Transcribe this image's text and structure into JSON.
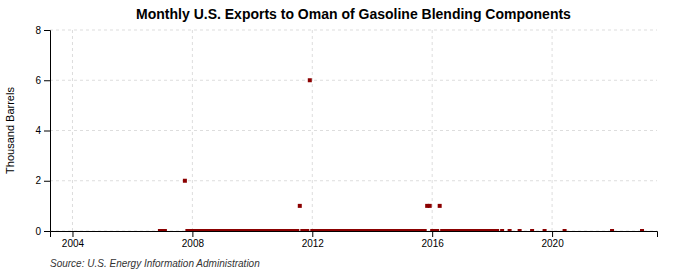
{
  "chart_data": {
    "type": "scatter",
    "title": "Monthly U.S. Exports to Oman of Gasoline Blending Components",
    "ylabel": "Thousand Barrels",
    "source": "Source: U.S. Energy Information Administration",
    "color": "#8b0000",
    "marker": "square",
    "grid": true,
    "xlim": [
      2003.25,
      2023.5
    ],
    "xticks": [
      2004,
      2008,
      2012,
      2016,
      2020
    ],
    "ylim": [
      0,
      8
    ],
    "yticks": [
      0,
      2,
      4,
      6,
      8
    ],
    "x": [
      2006.917,
      2007.0,
      2007.083,
      2007.75,
      2007.833,
      2007.917,
      2008.0,
      2008.083,
      2008.167,
      2008.25,
      2008.333,
      2008.417,
      2008.5,
      2008.583,
      2008.667,
      2008.75,
      2008.833,
      2008.917,
      2009.0,
      2009.083,
      2009.167,
      2009.25,
      2009.333,
      2009.417,
      2009.5,
      2009.583,
      2009.667,
      2009.75,
      2009.833,
      2009.917,
      2010.0,
      2010.083,
      2010.167,
      2010.25,
      2010.333,
      2010.417,
      2010.5,
      2010.583,
      2010.667,
      2010.75,
      2010.833,
      2010.917,
      2011.0,
      2011.083,
      2011.167,
      2011.25,
      2011.333,
      2011.417,
      2011.5,
      2011.583,
      2011.667,
      2011.75,
      2011.833,
      2011.917,
      2012.0,
      2012.083,
      2012.167,
      2012.25,
      2012.333,
      2012.417,
      2012.5,
      2012.583,
      2012.667,
      2012.75,
      2012.833,
      2012.917,
      2013.0,
      2013.083,
      2013.167,
      2013.25,
      2013.333,
      2013.417,
      2013.5,
      2013.583,
      2013.667,
      2013.75,
      2013.833,
      2013.917,
      2014.0,
      2014.083,
      2014.167,
      2014.25,
      2014.333,
      2014.417,
      2014.5,
      2014.583,
      2014.667,
      2014.75,
      2014.833,
      2014.917,
      2015.0,
      2015.083,
      2015.167,
      2015.25,
      2015.333,
      2015.417,
      2015.5,
      2015.583,
      2015.667,
      2015.75,
      2015.833,
      2015.917,
      2016.0,
      2016.083,
      2016.167,
      2016.25,
      2016.333,
      2016.417,
      2016.5,
      2016.583,
      2016.667,
      2016.75,
      2016.833,
      2016.917,
      2017.0,
      2017.083,
      2017.167,
      2017.25,
      2017.333,
      2017.417,
      2017.5,
      2017.583,
      2017.667,
      2017.75,
      2017.833,
      2017.917,
      2018.0,
      2018.083,
      2018.167,
      2018.333,
      2018.583,
      2018.917,
      2019.333,
      2019.75,
      2020.417,
      2022.0,
      2023.0
    ],
    "values": [
      0.0,
      0.0,
      0.0,
      2.0,
      0.0,
      0.0,
      0.0,
      0.0,
      0.0,
      0.0,
      0.0,
      0.0,
      0.0,
      0.0,
      0.0,
      0.0,
      0.0,
      0.0,
      0.0,
      0.0,
      0.0,
      0.0,
      0.0,
      0.0,
      0.0,
      0.0,
      0.0,
      0.0,
      0.0,
      0.0,
      0.0,
      0.0,
      0.0,
      0.0,
      0.0,
      0.0,
      0.0,
      0.0,
      0.0,
      0.0,
      0.0,
      0.0,
      0.0,
      0.0,
      0.0,
      0.0,
      0.0,
      0.0,
      0.0,
      1.0,
      0.0,
      0.0,
      0.0,
      6.0,
      0.0,
      0.0,
      0.0,
      0.0,
      0.0,
      0.0,
      0.0,
      0.0,
      0.0,
      0.0,
      0.0,
      0.0,
      0.0,
      0.0,
      0.0,
      0.0,
      0.0,
      0.0,
      0.0,
      0.0,
      0.0,
      0.0,
      0.0,
      0.0,
      0.0,
      0.0,
      0.0,
      0.0,
      0.0,
      0.0,
      0.0,
      0.0,
      0.0,
      0.0,
      0.0,
      0.0,
      0.0,
      0.0,
      0.0,
      0.0,
      0.0,
      0.0,
      0.0,
      0.0,
      0.0,
      0.0,
      1.0,
      1.0,
      0.0,
      0.0,
      0.0,
      1.0,
      0.0,
      0.0,
      0.0,
      0.0,
      0.0,
      0.0,
      0.0,
      0.0,
      0.0,
      0.0,
      0.0,
      0.0,
      0.0,
      0.0,
      0.0,
      0.0,
      0.0,
      0.0,
      0.0,
      0.0,
      0.0,
      0.0,
      0.0,
      0.0,
      0.0,
      0.0,
      0.0,
      0.0,
      0.0,
      0.0,
      0.0
    ]
  }
}
